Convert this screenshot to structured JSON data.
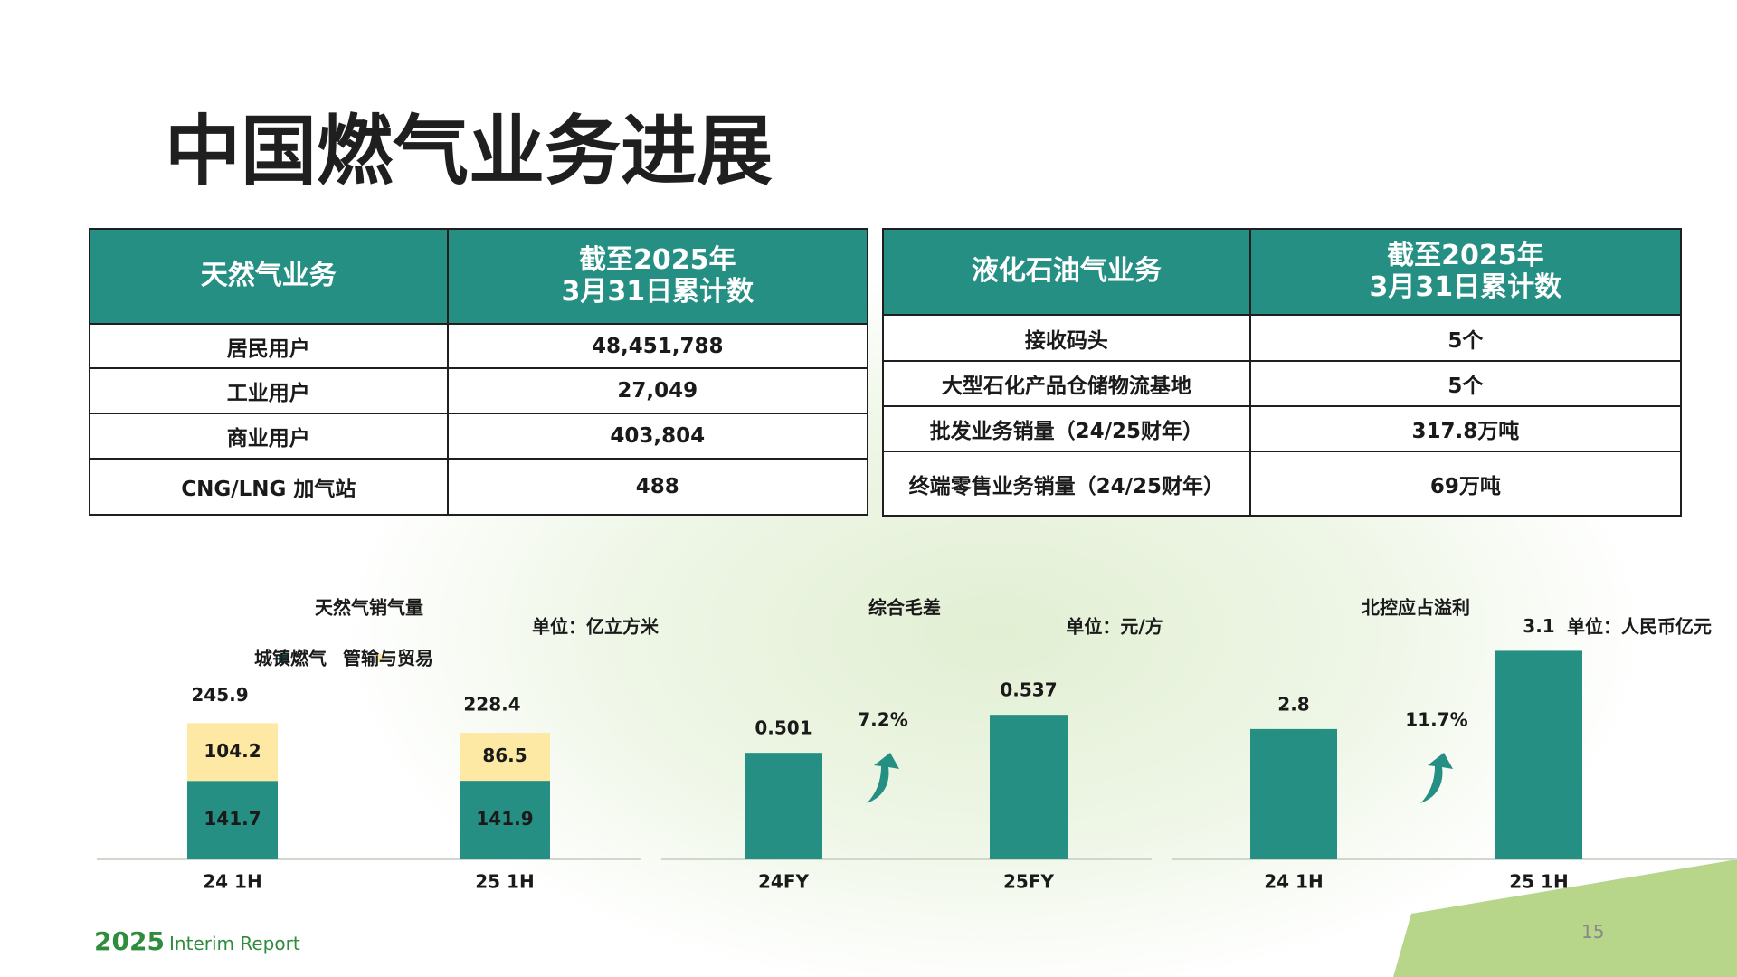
{
  "title": "中国燃气业务进展",
  "tables": [
    {
      "header": [
        "天然气业务",
        "截至2025年\n3月31日累计数"
      ],
      "rows": [
        [
          "居民用户",
          "48,451,788"
        ],
        [
          "工业用户",
          "27,049"
        ],
        [
          "商业用户",
          "403,804"
        ],
        [
          "CNG/LNG 加气站",
          "488"
        ]
      ]
    },
    {
      "header": [
        "液化石油气业务",
        "截至2025年\n3月31日累计数"
      ],
      "rows": [
        [
          "接收码头",
          "5个"
        ],
        [
          "大型石化产品仓储物流基地",
          "5个"
        ],
        [
          "批发业务销量（24/25财年）",
          "317.8万吨"
        ],
        [
          "终端零售业务销量（24/25财年）",
          "69万吨"
        ]
      ]
    }
  ],
  "chart_data": [
    {
      "type": "stacked-bar",
      "title": "天然气销气量",
      "unit": "单位：亿立方米",
      "categories": [
        "24 1H",
        "25 1H"
      ],
      "series": [
        {
          "name": "城镇燃气",
          "color": "#268f84",
          "values": [
            141.7,
            141.9
          ]
        },
        {
          "name": "管输与贸易",
          "color": "#fde9a3",
          "values": [
            104.2,
            86.5
          ]
        }
      ],
      "totals": [
        245.9,
        228.4
      ],
      "ylim": [
        0,
        400
      ]
    },
    {
      "type": "bar",
      "title": "综合毛差",
      "unit": "单位：元/方",
      "categories": [
        "24FY",
        "25FY"
      ],
      "values": [
        0.501,
        0.537
      ],
      "color": "#268f84",
      "growth": "7.2%",
      "ylim": [
        0.4,
        0.61
      ]
    },
    {
      "type": "bar",
      "title": "北控应占溢利",
      "unit": "单位：人民币亿元",
      "categories": [
        "24 1H",
        "25 1H"
      ],
      "values": [
        2.8,
        3.1
      ],
      "color": "#268f84",
      "growth": "11.7%",
      "ylim": [
        2.3,
        3.15
      ]
    }
  ],
  "footer": {
    "year": "2025",
    "report": "Interim Report",
    "page": "15"
  }
}
